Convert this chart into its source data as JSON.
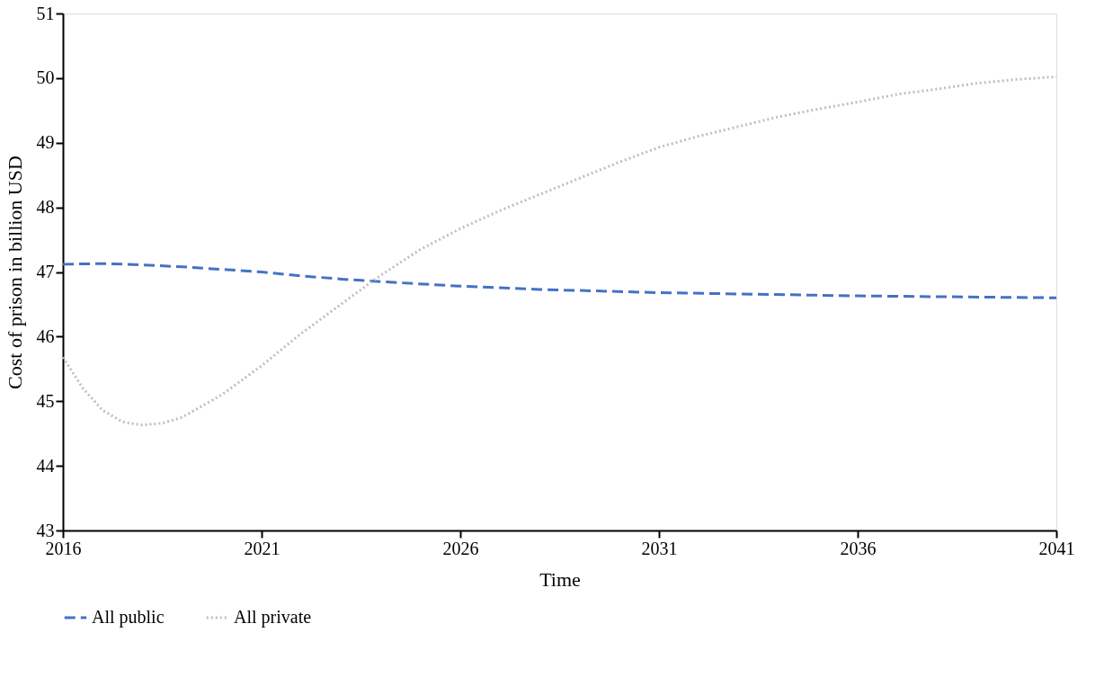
{
  "chart_data": {
    "type": "line",
    "xlabel": "Time",
    "ylabel": "Cost of prison in billion USD",
    "xlim": [
      2016,
      2041
    ],
    "xticks": [
      2016,
      2021,
      2026,
      2031,
      2036,
      2041
    ],
    "ylim": [
      43,
      51
    ],
    "yticks": [
      43,
      44,
      45,
      46,
      47,
      48,
      49,
      50,
      51
    ],
    "grid": false,
    "legend": "bottom",
    "marker": "none",
    "series": [
      {
        "name": "All public",
        "color": "#4472c4",
        "line_style": "dashed",
        "x": [
          2016,
          2017,
          2018,
          2019,
          2020,
          2021,
          2022,
          2023,
          2024,
          2026,
          2028,
          2031,
          2036,
          2041
        ],
        "values": [
          47.12,
          47.13,
          47.11,
          47.08,
          47.04,
          47.0,
          46.94,
          46.89,
          46.85,
          46.78,
          46.73,
          46.68,
          46.63,
          46.6
        ]
      },
      {
        "name": "All private",
        "color": "#bfbfbf",
        "line_style": "dotted",
        "x": [
          2016,
          2016.5,
          2017,
          2017.5,
          2018,
          2018.5,
          2019,
          2020,
          2021,
          2022,
          2023,
          2024,
          2025,
          2026,
          2027,
          2028,
          2029,
          2030,
          2031,
          2032,
          2033,
          2034,
          2035,
          2036,
          2037,
          2038,
          2039,
          2040,
          2041
        ],
        "values": [
          45.68,
          45.2,
          44.86,
          44.68,
          44.63,
          44.66,
          44.75,
          45.1,
          45.55,
          46.05,
          46.5,
          46.95,
          47.35,
          47.67,
          47.95,
          48.2,
          48.45,
          48.7,
          48.93,
          49.1,
          49.25,
          49.4,
          49.52,
          49.63,
          49.75,
          49.83,
          49.92,
          49.98,
          50.02
        ]
      }
    ]
  }
}
